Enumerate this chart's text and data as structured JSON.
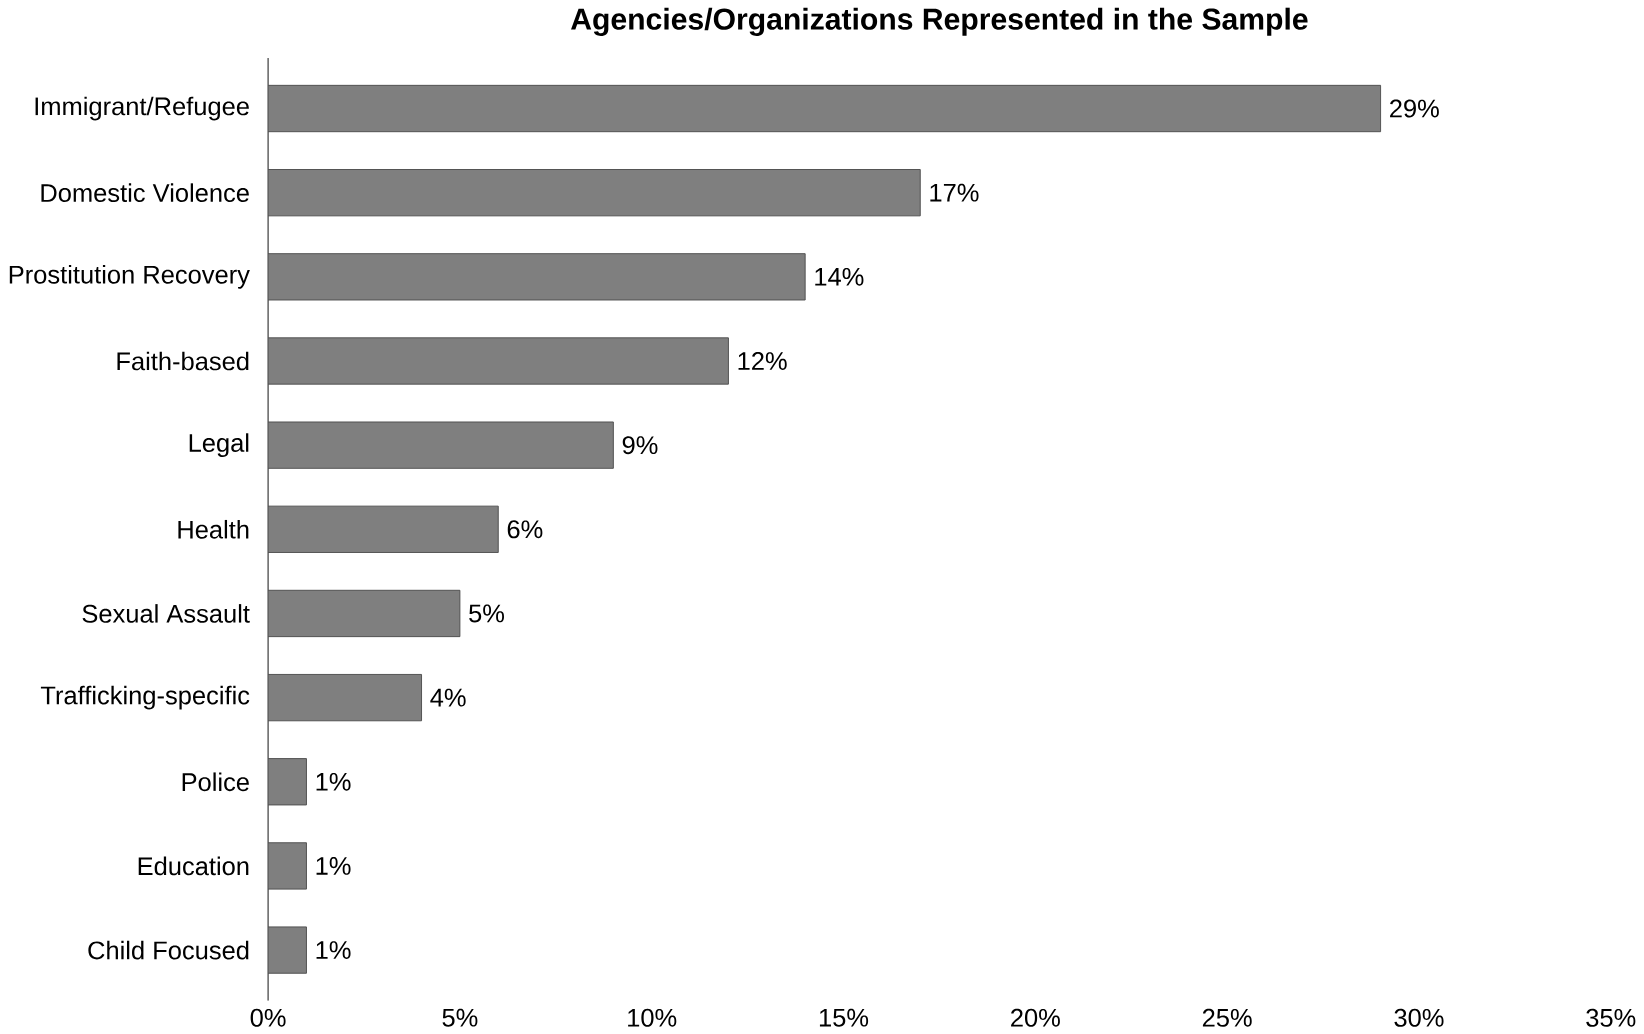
{
  "chart_data": {
    "type": "bar",
    "orientation": "horizontal",
    "title": "Agencies/Organizations Represented in the Sample",
    "categories": [
      "Immigrant/Refugee",
      "Domestic Violence",
      "Prostitution Recovery",
      "Faith-based",
      "Legal",
      "Health",
      "Sexual Assault",
      "Trafficking-specific",
      "Police",
      "Education",
      "Child Focused"
    ],
    "values": [
      29,
      17,
      14,
      12,
      9,
      6,
      5,
      4,
      1,
      1,
      1
    ],
    "value_labels": [
      "29%",
      "17%",
      "14%",
      "12%",
      "9%",
      "6%",
      "5%",
      "4%",
      "1%",
      "1%",
      "1%"
    ],
    "color": "#7f7f7f",
    "xlim": [
      0,
      35
    ],
    "xticks": [
      {
        "value": 0,
        "label": "0%"
      },
      {
        "value": 5,
        "label": "5%"
      },
      {
        "value": 10,
        "label": "10%"
      },
      {
        "value": 15,
        "label": "15%"
      },
      {
        "value": 20,
        "label": "20%"
      },
      {
        "value": 25,
        "label": "25%"
      },
      {
        "value": 30,
        "label": "30%"
      },
      {
        "value": 35,
        "label": "35%"
      }
    ],
    "grid": false
  }
}
